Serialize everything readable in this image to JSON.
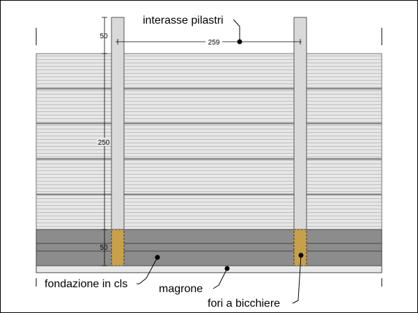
{
  "labels": {
    "top": "interasse pilastri",
    "bottom_left": "fondazione in cls",
    "bottom_middle": "magrone",
    "bottom_right": "fori a bicchiere"
  },
  "dimensions": {
    "span": "259",
    "top_offset": "50",
    "wall_height": "250",
    "foundation_height": "50"
  }
}
